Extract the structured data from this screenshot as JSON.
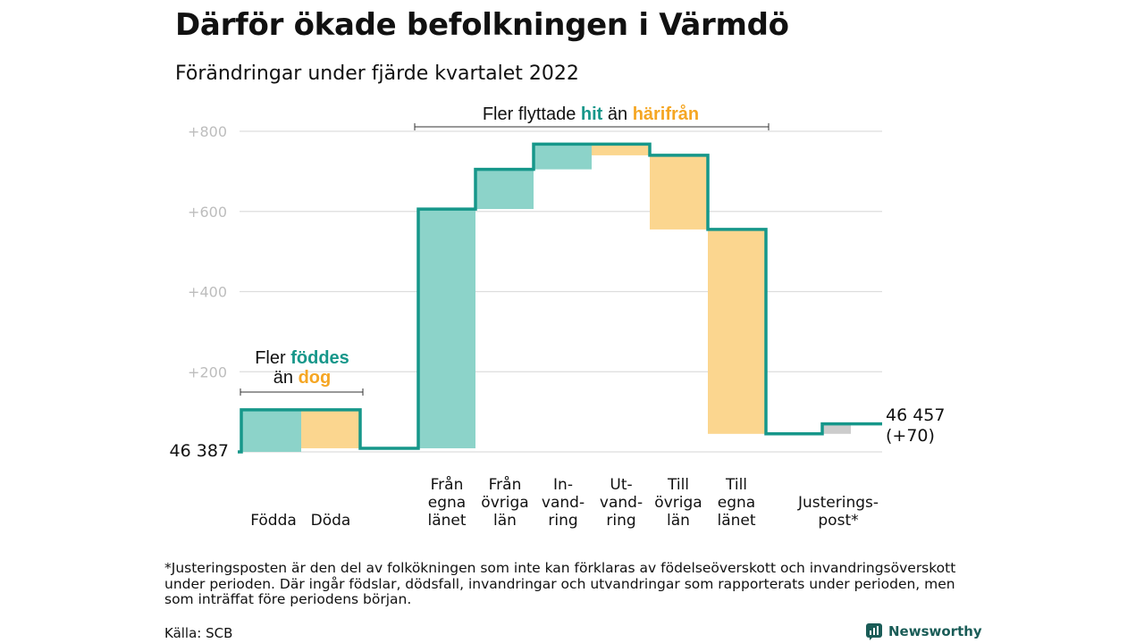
{
  "title": "Därför ökade befolkningen i Värmdö",
  "subtitle": "Förändringar under fjärde kvartalet 2022",
  "footnote": "*Justeringsposten är den del av folkökningen som inte kan förklaras av födelseöverskott och invandringsöverskott under perioden. Där ingår födslar, dödsfall, invandringar och utvandringar som rapporterats under perioden, men som inträffat före periodens början.",
  "source": "Källa: SCB",
  "brand": "Newsworthy",
  "colors": {
    "increase": "#8cd3c9",
    "decrease": "#fbd68f",
    "adjustment": "#cccccc",
    "line": "#16978a",
    "teal_text": "#16978a",
    "orange_text": "#f5a623",
    "grid": "#dddddd"
  },
  "annotations": {
    "births_line1_pre": "Fler ",
    "births_line1_em": "föddes",
    "births_line2_pre": "än ",
    "births_line2_em": "dog",
    "migration_pre": "Fler flyttade ",
    "migration_em1": "hit",
    "migration_mid": " än ",
    "migration_em2": "härifrån"
  },
  "chart_data": {
    "type": "waterfall",
    "baseline_label": "46 387",
    "end_label_line1": "46 457",
    "end_label_line2": "(+70)",
    "yticks": [
      {
        "value": 200,
        "label": "+200"
      },
      {
        "value": 400,
        "label": "+400"
      },
      {
        "value": 600,
        "label": "+600"
      },
      {
        "value": 800,
        "label": "+800"
      }
    ],
    "ylim": [
      0,
      800
    ],
    "grid": true,
    "steps": [
      {
        "label": [
          "Födda"
        ],
        "change": 105,
        "kind": "increase"
      },
      {
        "label": [
          "Döda"
        ],
        "change": -96,
        "kind": "decrease"
      },
      {
        "label": [
          "Från",
          "egna",
          "länet"
        ],
        "change": 597,
        "kind": "increase"
      },
      {
        "label": [
          "Från",
          "övriga",
          "län"
        ],
        "change": 99,
        "kind": "increase"
      },
      {
        "label": [
          "In-",
          "vand-",
          "ring"
        ],
        "change": 63,
        "kind": "increase"
      },
      {
        "label": [
          "Ut-",
          "vand-",
          "ring"
        ],
        "change": -28,
        "kind": "decrease"
      },
      {
        "label": [
          "Till",
          "övriga",
          "län"
        ],
        "change": -185,
        "kind": "decrease"
      },
      {
        "label": [
          "Till",
          "egna",
          "länet"
        ],
        "change": -510,
        "kind": "decrease"
      },
      {
        "label": [
          "Justerings-",
          "post*"
        ],
        "change": 25,
        "kind": "adjustment"
      }
    ]
  }
}
